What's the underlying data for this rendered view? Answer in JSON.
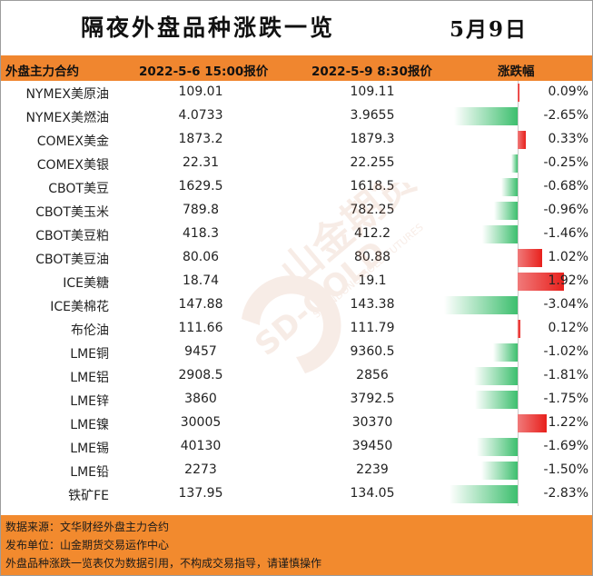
{
  "title": "隔夜外盘品种涨跌一览",
  "date": "5月9日",
  "header": {
    "col_name": "外盘主力合约",
    "col_price1": "2022-5-6 15:00报价",
    "col_price2": "2022-5-9 8:30报价",
    "col_change": "涨跌幅"
  },
  "rows": [
    {
      "name": "NYMEX美原油",
      "p1": "109.01",
      "p2": "109.11",
      "pct": "0.09%"
    },
    {
      "name": "NYMEX美燃油",
      "p1": "4.0733",
      "p2": "3.9655",
      "pct": "-2.65%"
    },
    {
      "name": "COMEX美金",
      "p1": "1873.2",
      "p2": "1879.3",
      "pct": "0.33%"
    },
    {
      "name": "COMEX美银",
      "p1": "22.31",
      "p2": "22.255",
      "pct": "-0.25%"
    },
    {
      "name": "CBOT美豆",
      "p1": "1629.5",
      "p2": "1618.5",
      "pct": "-0.68%"
    },
    {
      "name": "CBOT美玉米",
      "p1": "789.8",
      "p2": "782.25",
      "pct": "-0.96%"
    },
    {
      "name": "CBOT美豆粕",
      "p1": "418.3",
      "p2": "412.2",
      "pct": "-1.46%"
    },
    {
      "name": "CBOT美豆油",
      "p1": "80.06",
      "p2": "80.88",
      "pct": "1.02%"
    },
    {
      "name": "ICE美糖",
      "p1": "18.74",
      "p2": "19.1",
      "pct": "1.92%"
    },
    {
      "name": "ICE美棉花",
      "p1": "147.88",
      "p2": "143.38",
      "pct": "-3.04%"
    },
    {
      "name": "布伦油",
      "p1": "111.66",
      "p2": "111.79",
      "pct": "0.12%"
    },
    {
      "name": "LME铜",
      "p1": "9457",
      "p2": "9360.5",
      "pct": "-1.02%"
    },
    {
      "name": "LME铝",
      "p1": "2908.5",
      "p2": "2856",
      "pct": "-1.81%"
    },
    {
      "name": "LME锌",
      "p1": "3860",
      "p2": "3792.5",
      "pct": "-1.75%"
    },
    {
      "name": "LME镍",
      "p1": "30005",
      "p2": "30370",
      "pct": "1.22%"
    },
    {
      "name": "LME锡",
      "p1": "40130",
      "p2": "39450",
      "pct": "-1.69%"
    },
    {
      "name": "LME铅",
      "p1": "2273",
      "p2": "2239",
      "pct": "-1.50%"
    },
    {
      "name": "铁矿FE",
      "p1": "137.95",
      "p2": "134.05",
      "pct": "-2.83%"
    }
  ],
  "chart_data": {
    "type": "table",
    "categories": [
      "NYMEX美原油",
      "NYMEX美燃油",
      "COMEX美金",
      "COMEX美银",
      "CBOT美豆",
      "CBOT美玉米",
      "CBOT美豆粕",
      "CBOT美豆油",
      "ICE美糖",
      "ICE美棉花",
      "布伦油",
      "LME铜",
      "LME铝",
      "LME锌",
      "LME镍",
      "LME锡",
      "LME铅",
      "铁矿FE"
    ],
    "values": [
      0.09,
      -2.65,
      0.33,
      -0.25,
      -0.68,
      -0.96,
      -1.46,
      1.02,
      1.92,
      -3.04,
      0.12,
      -1.02,
      -1.81,
      -1.75,
      1.22,
      -1.69,
      -1.5,
      -2.83
    ],
    "unit": "%",
    "colors": {
      "positive": "#e8201c",
      "negative": "#3dbf6e"
    }
  },
  "footer": {
    "source": "数据来源：文华财经外盘主力合约",
    "publisher": "发布单位：山金期货交易运作中心",
    "disclaimer": "外盘品种涨跌一览表仅为数据引用，不构成交易指导，请谨慎操作"
  },
  "watermark": {
    "brand_cn": "山金期货",
    "brand_en": "SD-GOLD",
    "brand_en2": "SHANDONG GOLD FUTURES"
  },
  "colors": {
    "header_bg": "#f0862f",
    "footer_bg": "#f28a2e"
  }
}
